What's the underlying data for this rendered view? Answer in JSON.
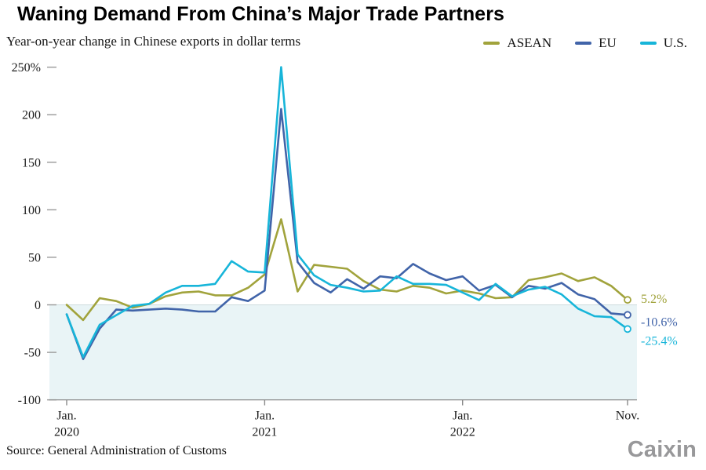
{
  "header": {
    "title": "Waning Demand From China’s Major Trade Partners",
    "subtitle": "Year-on-year change in Chinese exports in dollar terms"
  },
  "legend": {
    "items": [
      {
        "label": "ASEAN",
        "color": "#a1a33c"
      },
      {
        "label": "EU",
        "color": "#4164a9"
      },
      {
        "label": "U.S.",
        "color": "#17b5d9"
      }
    ]
  },
  "chart_data": {
    "type": "line",
    "title": "Waning Demand From China’s Major Trade Partners",
    "subtitle": "Year-on-year change in Chinese exports in dollar terms",
    "x_unit": "month",
    "x_range_visible": [
      "Jan. 2020",
      "Nov. 2022"
    ],
    "ylim": [
      -100,
      250
    ],
    "grid": false,
    "legend_position": "top-right",
    "below_zero_fill": "#e9f4f6",
    "y_ticks": [
      {
        "value": 250,
        "label": "250%"
      },
      {
        "value": 200,
        "label": "200"
      },
      {
        "value": 150,
        "label": "150"
      },
      {
        "value": 100,
        "label": "100"
      },
      {
        "value": 50,
        "label": "50"
      },
      {
        "value": 0,
        "label": "0"
      },
      {
        "value": -50,
        "label": "-50"
      },
      {
        "value": -100,
        "label": "-100"
      }
    ],
    "x_ticks": [
      {
        "index": 0,
        "line1": "Jan.",
        "line2": "2020"
      },
      {
        "index": 12,
        "line1": "Jan.",
        "line2": "2021"
      },
      {
        "index": 24,
        "line1": "Jan.",
        "line2": "2022"
      },
      {
        "index": 34,
        "line1": "Nov.",
        "line2": ""
      }
    ],
    "series": [
      {
        "id": "asean",
        "name": "ASEAN",
        "color": "#a1a33c",
        "end_label": "5.2%",
        "values": [
          0,
          -16,
          7,
          4,
          -3,
          1,
          9,
          13,
          14,
          10,
          10,
          18,
          32,
          90,
          14,
          42,
          40,
          38,
          25,
          16,
          14,
          20,
          18,
          12,
          15,
          12,
          7,
          8,
          26,
          29,
          33,
          25,
          29,
          20,
          5.2
        ]
      },
      {
        "id": "eu",
        "name": "EU",
        "color": "#4164a9",
        "end_label": "-10.6%",
        "values": [
          -10,
          -57,
          -25,
          -5,
          -6,
          -5,
          -4,
          -5,
          -7,
          -7,
          8,
          4,
          15,
          206,
          45,
          23,
          13,
          27,
          17,
          30,
          28,
          43,
          33,
          26,
          30,
          15,
          21,
          8,
          20,
          17,
          23,
          11,
          6,
          -9,
          -10.6
        ]
      },
      {
        "id": "us",
        "name": "U.S.",
        "color": "#17b5d9",
        "end_label": "-25.4%",
        "values": [
          -10,
          -55,
          -21,
          -11,
          -1,
          1,
          13,
          20,
          20,
          22,
          46,
          35,
          34,
          250,
          53,
          31,
          21,
          18,
          14,
          15,
          30,
          22,
          22,
          21,
          13,
          5,
          22,
          9,
          16,
          19,
          11,
          -4,
          -12,
          -13,
          -25.4
        ]
      }
    ]
  },
  "footer": {
    "source": "Source: General Administration of Customs",
    "logo": "Caixin"
  }
}
